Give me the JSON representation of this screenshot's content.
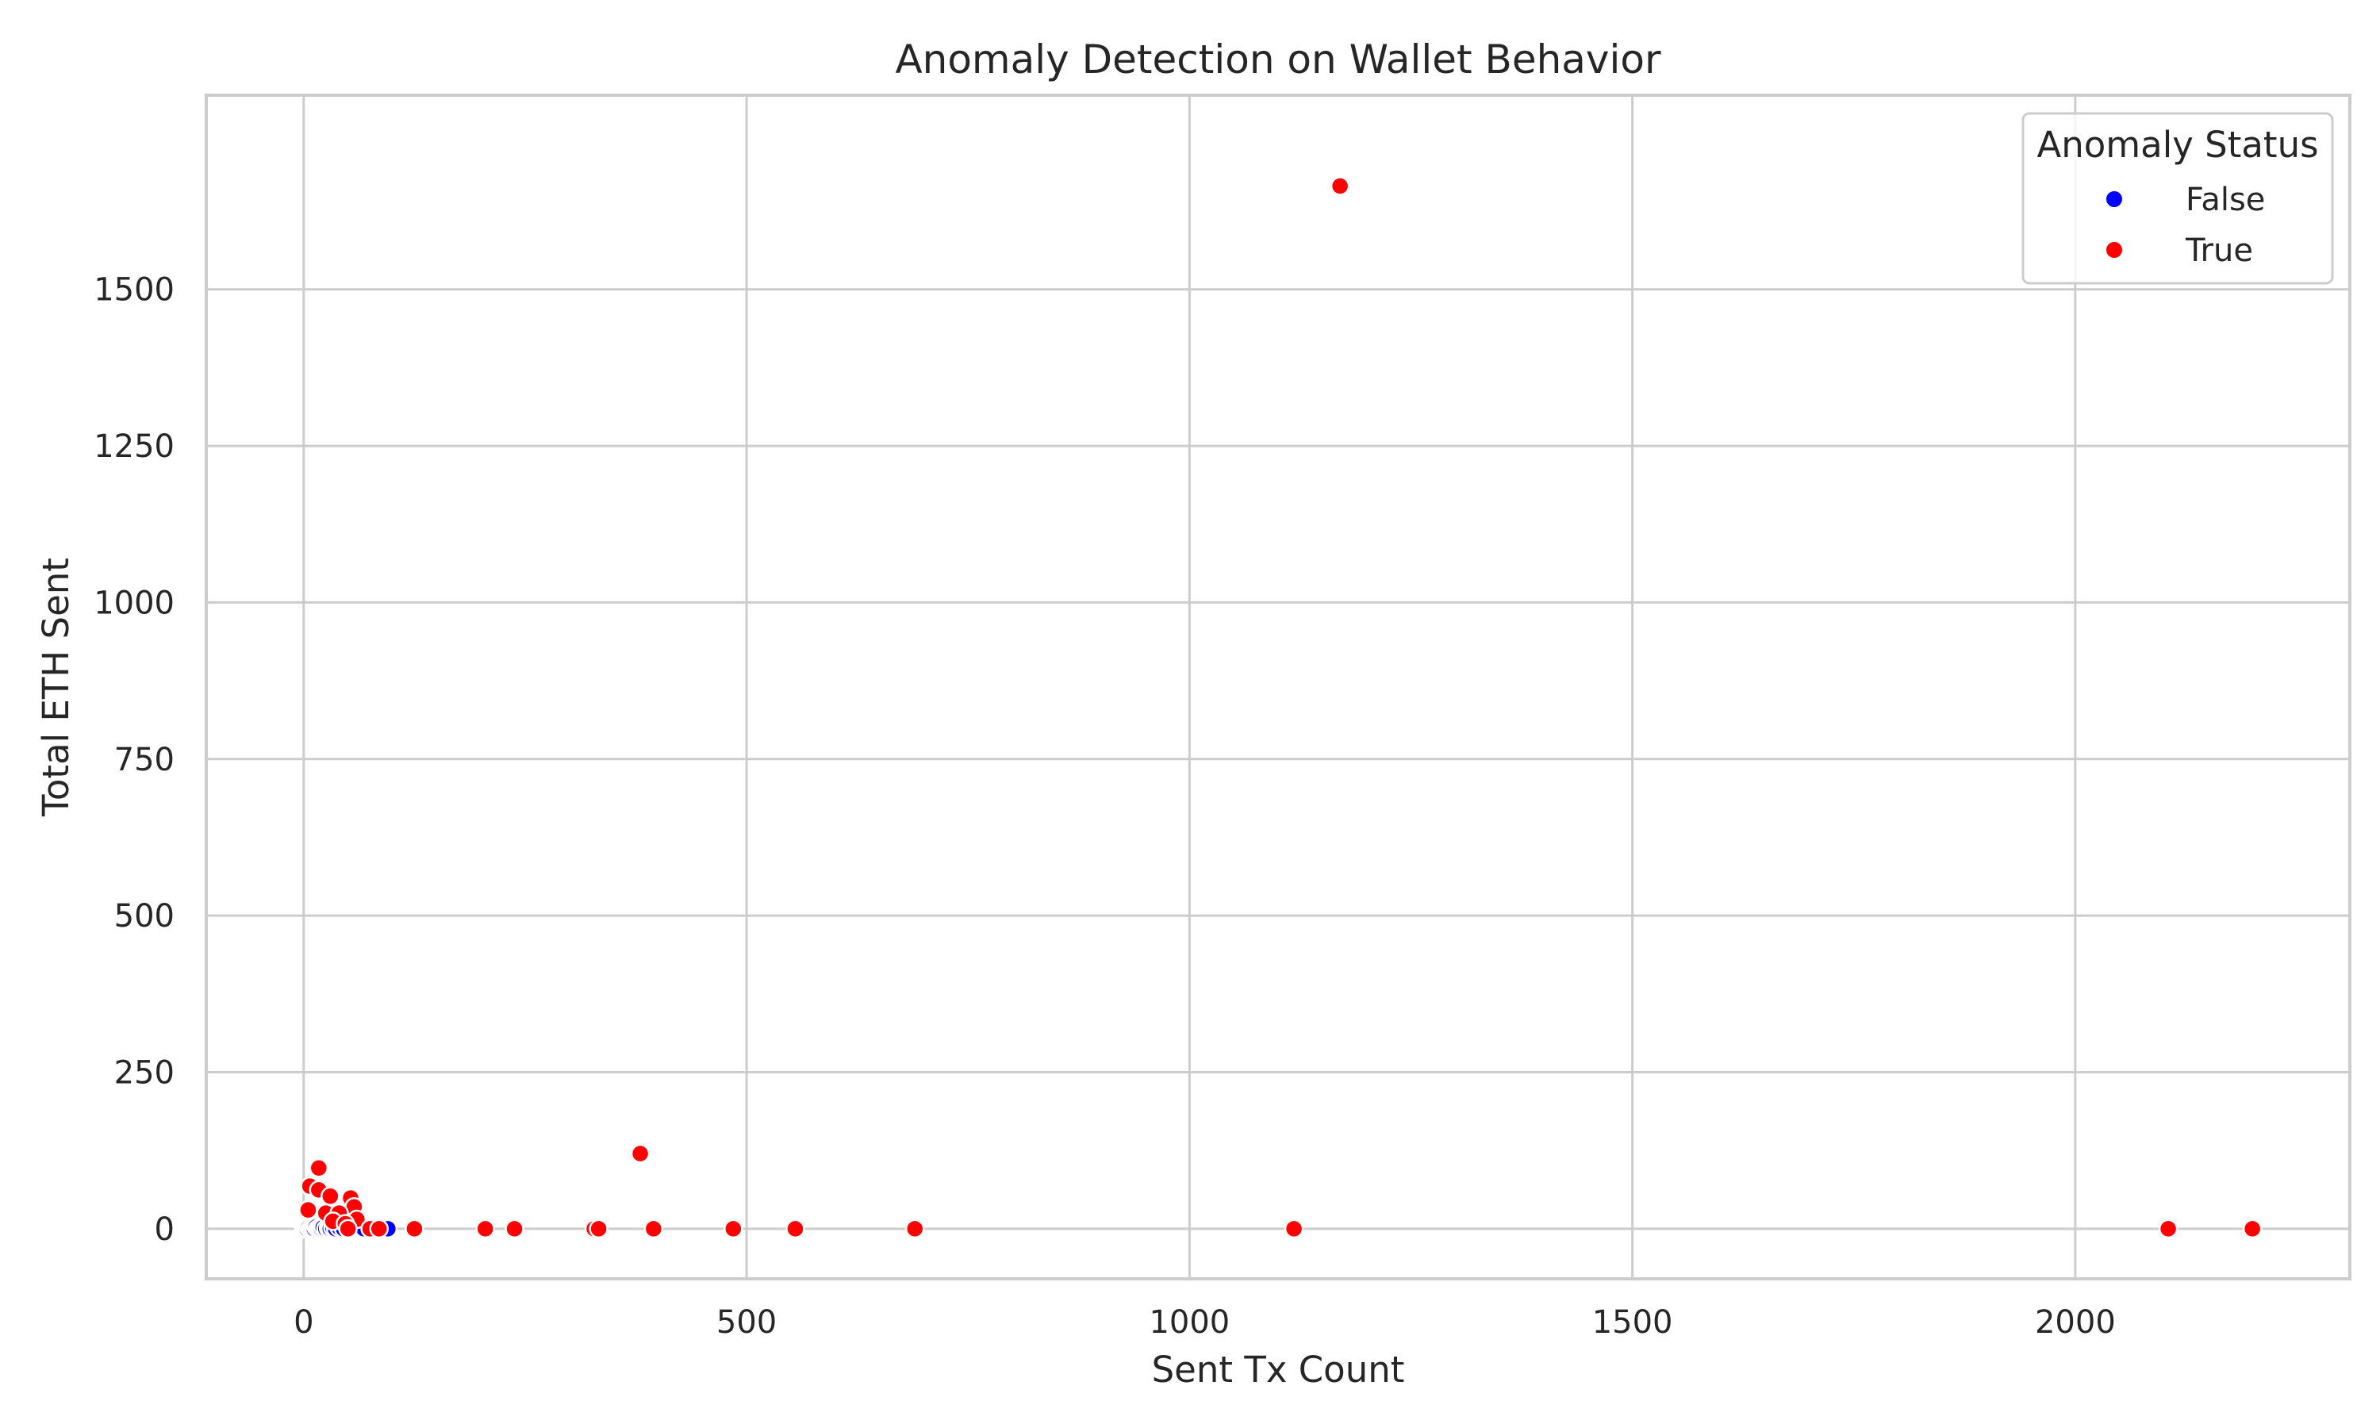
{
  "chart_data": {
    "type": "scatter",
    "title": "Anomaly Detection on Wallet Behavior",
    "xlabel": "Sent Tx Count",
    "ylabel": "Total ETH Sent",
    "xlim": [
      -110,
      2310
    ],
    "ylim": [
      -80,
      1810
    ],
    "xticks": [
      0,
      500,
      1000,
      1500,
      2000
    ],
    "yticks": [
      0,
      250,
      500,
      750,
      1000,
      1250,
      1500
    ],
    "grid": true,
    "legend": {
      "title": "Anomaly Status",
      "placement": "top-right",
      "entries": [
        {
          "label": "False",
          "color": "#0000ff"
        },
        {
          "label": "True",
          "color": "#ff0000"
        }
      ]
    },
    "series": [
      {
        "name": "False",
        "color": "#0000ff",
        "points": [
          [
            0,
            0
          ],
          [
            2,
            1
          ],
          [
            4,
            0
          ],
          [
            6,
            2
          ],
          [
            8,
            0
          ],
          [
            10,
            1
          ],
          [
            12,
            0
          ],
          [
            14,
            3
          ],
          [
            16,
            0
          ],
          [
            18,
            1
          ],
          [
            20,
            0
          ],
          [
            22,
            2
          ],
          [
            25,
            0
          ],
          [
            28,
            1
          ],
          [
            30,
            0
          ],
          [
            33,
            1
          ],
          [
            36,
            0
          ],
          [
            40,
            2
          ],
          [
            45,
            0
          ],
          [
            50,
            1
          ],
          [
            55,
            0
          ],
          [
            60,
            0
          ],
          [
            65,
            0
          ],
          [
            68,
            0
          ],
          [
            95,
            0
          ]
        ]
      },
      {
        "name": "True",
        "color": "#ff0000",
        "points": [
          [
            1170,
            1665
          ],
          [
            380,
            120
          ],
          [
            17,
            97
          ],
          [
            7,
            68
          ],
          [
            17,
            62
          ],
          [
            30,
            52
          ],
          [
            53,
            49
          ],
          [
            57,
            35
          ],
          [
            5,
            30
          ],
          [
            25,
            25
          ],
          [
            40,
            25
          ],
          [
            60,
            15
          ],
          [
            33,
            12
          ],
          [
            47,
            8
          ],
          [
            50,
            0
          ],
          [
            75,
            0
          ],
          [
            85,
            0
          ],
          [
            125,
            0
          ],
          [
            205,
            0
          ],
          [
            238,
            0
          ],
          [
            328,
            0
          ],
          [
            333,
            0
          ],
          [
            395,
            0
          ],
          [
            485,
            0
          ],
          [
            555,
            0
          ],
          [
            690,
            0
          ],
          [
            1118,
            0
          ],
          [
            2105,
            0
          ],
          [
            2200,
            0
          ]
        ]
      }
    ]
  }
}
